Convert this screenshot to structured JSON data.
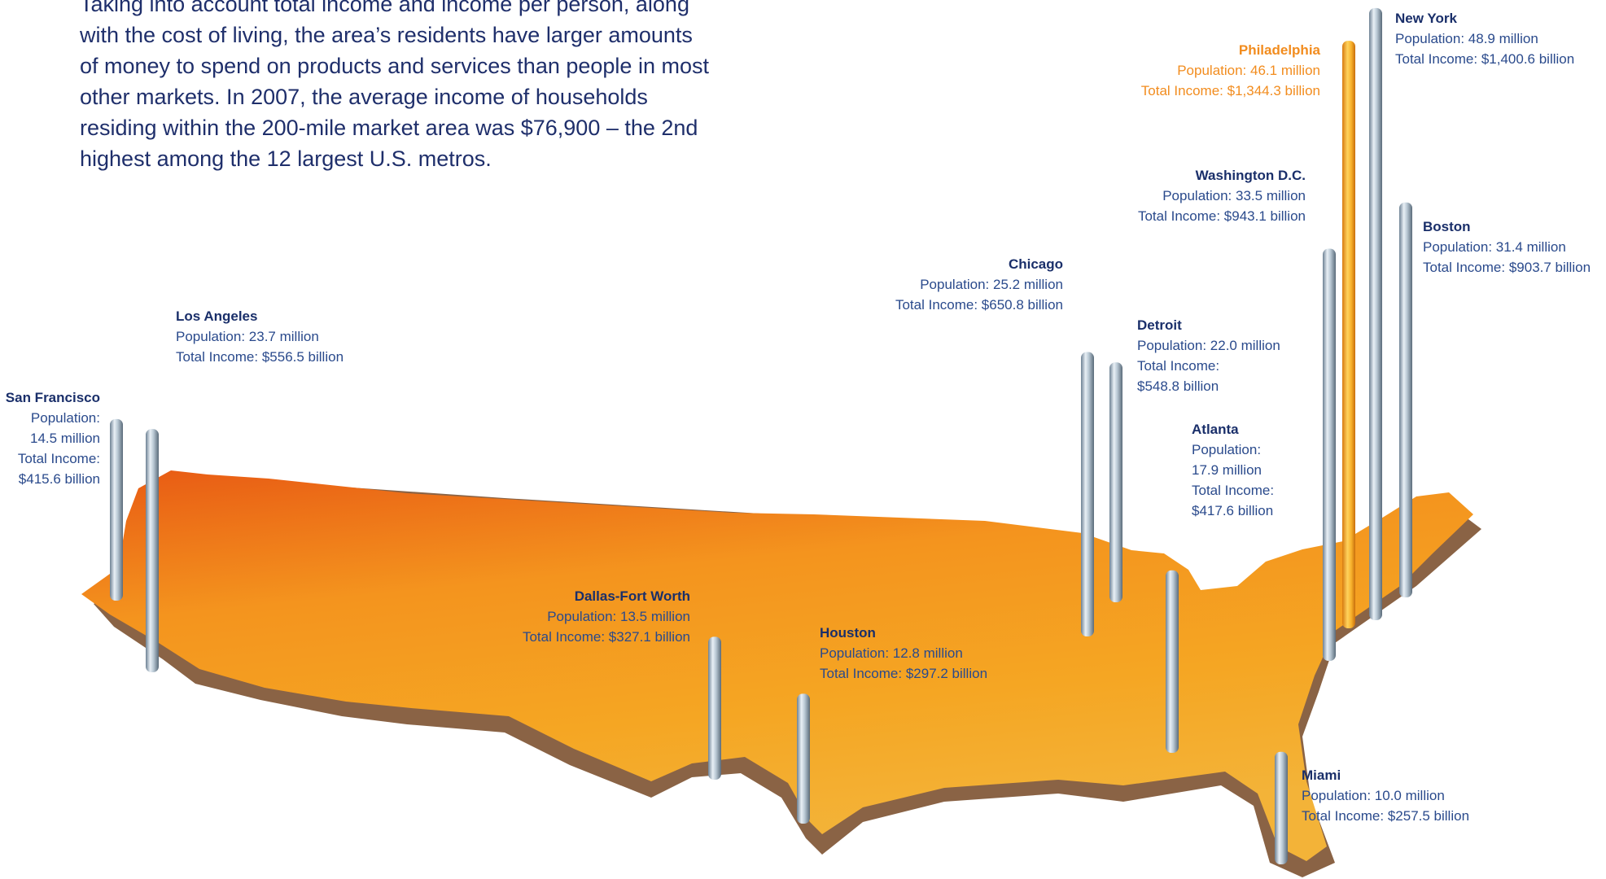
{
  "intro": {
    "text": "Taking into account total income and income per person, along with the cost of living, the area’s residents have larger amounts of money to spend on products and services than people in most other markets.  In 2007, the average income of households residing within the 200-mile market area was $76,900 – the 2nd highest among the 12 largest U.S. metros."
  },
  "colors": {
    "highlight": "#f28c1e",
    "city_name": "#1a2f6a",
    "text": "#2a4a8c",
    "map": "#f5a623",
    "map_shadow": "#8a6345"
  },
  "chart_data": {
    "type": "bar",
    "categories": [
      "New York",
      "Philadelphia",
      "Washington D.C.",
      "Boston",
      "Chicago",
      "Los Angeles",
      "Detroit",
      "Atlanta",
      "San Francisco",
      "Dallas-Fort Worth",
      "Houston",
      "Miami"
    ],
    "metros": [
      {
        "name": "New York",
        "population_label": "Population:  48.9 million",
        "income_label": "Total Income:  $1,400.6 billion",
        "population_millions": 48.9,
        "income_billions": 1400.6
      },
      {
        "name": "Philadelphia",
        "population_label": "Population:  46.1 million",
        "income_label": "Total Income:  $1,344.3 billion",
        "population_millions": 46.1,
        "income_billions": 1344.3,
        "highlight": true
      },
      {
        "name": "Washington D.C.",
        "population_label": "Population:  33.5 million",
        "income_label": "Total Income:  $943.1 billion",
        "population_millions": 33.5,
        "income_billions": 943.1
      },
      {
        "name": "Boston",
        "population_label": "Population:  31.4 million",
        "income_label": "Total Income:  $903.7 billion",
        "population_millions": 31.4,
        "income_billions": 903.7
      },
      {
        "name": "Chicago",
        "population_label": "Population:  25.2 million",
        "income_label": "Total Income:  $650.8 billion",
        "population_millions": 25.2,
        "income_billions": 650.8
      },
      {
        "name": "Los Angeles",
        "population_label": "Population:  23.7 million",
        "income_label": "Total Income:  $556.5 billion",
        "population_millions": 23.7,
        "income_billions": 556.5
      },
      {
        "name": "Detroit",
        "population_label": "Population:  22.0 million",
        "income_label": "Total Income:",
        "income_value": "$548.8 billion",
        "population_millions": 22.0,
        "income_billions": 548.8
      },
      {
        "name": "Atlanta",
        "population_label": "Population:",
        "population_value": "17.9 million",
        "income_label": "Total Income:",
        "income_value": "$417.6 billion",
        "population_millions": 17.9,
        "income_billions": 417.6
      },
      {
        "name": "San Francisco",
        "population_label": "Population:",
        "population_value": "14.5 million",
        "income_label": "Total Income:",
        "income_value": "$415.6 billion",
        "population_millions": 14.5,
        "income_billions": 415.6
      },
      {
        "name": "Dallas-Fort Worth",
        "population_label": "Population:  13.5 million",
        "income_label": "Total Income:  $327.1 billion",
        "population_millions": 13.5,
        "income_billions": 327.1
      },
      {
        "name": "Houston",
        "population_label": "Population:  12.8 million",
        "income_label": "Total Income:  $297.2 billion",
        "population_millions": 12.8,
        "income_billions": 297.2
      },
      {
        "name": "Miami",
        "population_label": "Population:  10.0 million",
        "income_label": "Total Income:  $257.5 billion",
        "population_millions": 10.0,
        "income_billions": 257.5
      }
    ]
  }
}
